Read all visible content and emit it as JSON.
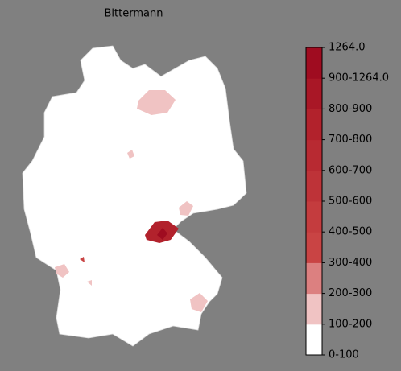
{
  "title": "Bittermann",
  "colorbar": {
    "labels": [
      "0-100",
      "100-200",
      "200-300",
      "300-400",
      "400-500",
      "500-600",
      "600-700",
      "700-800",
      "800-900",
      "900-1264.0",
      "1264.0"
    ],
    "colors": [
      "#ffffff",
      "#f0c3c3",
      "#dc8080",
      "#c94444",
      "#c43c3e",
      "#be3338",
      "#b82a32",
      "#b2222c",
      "#a91726",
      "#9f0c20"
    ]
  }
}
